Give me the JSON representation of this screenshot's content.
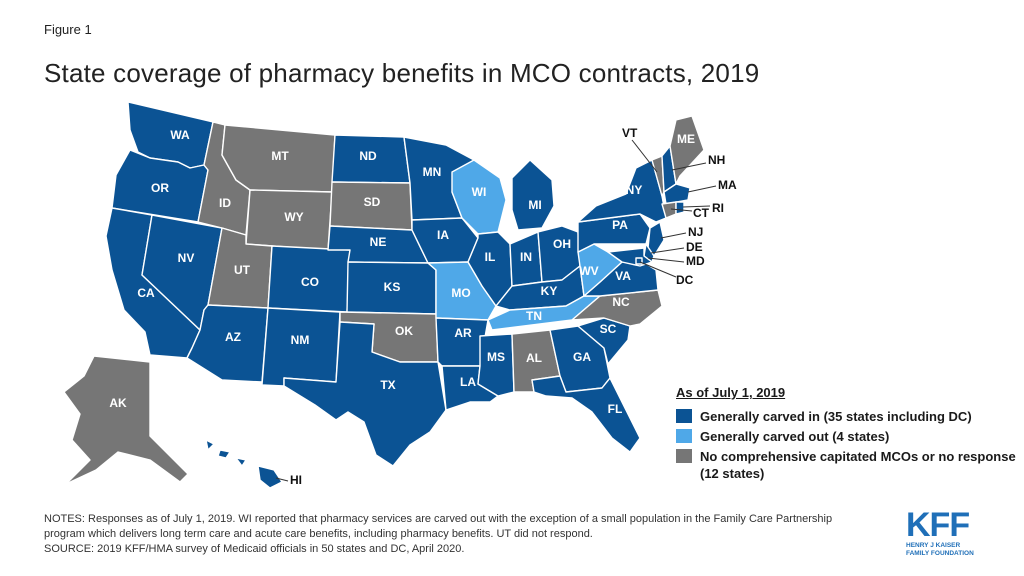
{
  "figure_label": "Figure 1",
  "title": "State coverage of pharmacy benefits in MCO contracts, 2019",
  "colors": {
    "carved_in": "#0b5394",
    "carved_out": "#4fa8e8",
    "no_mco": "#767676"
  },
  "legend": {
    "title": "As of July 1, 2019",
    "items": [
      {
        "category": "carved_in",
        "label": "Generally carved in (35 states including DC)"
      },
      {
        "category": "carved_out",
        "label": "Generally carved out (4 states)"
      },
      {
        "category": "no_mco",
        "label": "No comprehensive capitated MCOs or no response (12 states)"
      }
    ]
  },
  "states": {
    "WA": "carved_in",
    "OR": "carved_in",
    "CA": "carved_in",
    "NV": "carved_in",
    "ID": "no_mco",
    "MT": "no_mco",
    "WY": "no_mco",
    "UT": "no_mco",
    "AZ": "carved_in",
    "CO": "carved_in",
    "NM": "carved_in",
    "ND": "carved_in",
    "SD": "no_mco",
    "NE": "carved_in",
    "KS": "carved_in",
    "OK": "no_mco",
    "TX": "carved_in",
    "MN": "carved_in",
    "IA": "carved_in",
    "MO": "carved_out",
    "AR": "carved_in",
    "LA": "carved_in",
    "WI": "carved_out",
    "IL": "carved_in",
    "MI": "carved_in",
    "IN": "carved_in",
    "OH": "carved_in",
    "KY": "carved_in",
    "TN": "carved_out",
    "MS": "carved_in",
    "AL": "no_mco",
    "GA": "carved_in",
    "FL": "carved_in",
    "SC": "carved_in",
    "NC": "no_mco",
    "VA": "carved_in",
    "WV": "carved_out",
    "PA": "carved_in",
    "NY": "carved_in",
    "ME": "no_mco",
    "VT": "no_mco",
    "NH": "carved_in",
    "MA": "carved_in",
    "RI": "carved_in",
    "CT": "no_mco",
    "NJ": "carved_in",
    "DE": "carved_in",
    "MD": "carved_in",
    "DC": "carved_in",
    "AK": "no_mco",
    "HI": "carved_in"
  },
  "notes": "NOTES: Responses as of July 1, 2019. WI reported that pharmacy services are carved out with the exception of a small population in the Family Care Partnership program which delivers long term care and acute care benefits, including pharmacy benefits. UT did not respond.",
  "source": "SOURCE: 2019 KFF/HMA survey  of Medicaid officials in 50 states and DC, April 2020.",
  "logo": {
    "mark": "KFF",
    "line1": "HENRY J KAISER",
    "line2": "FAMILY FOUNDATION"
  }
}
